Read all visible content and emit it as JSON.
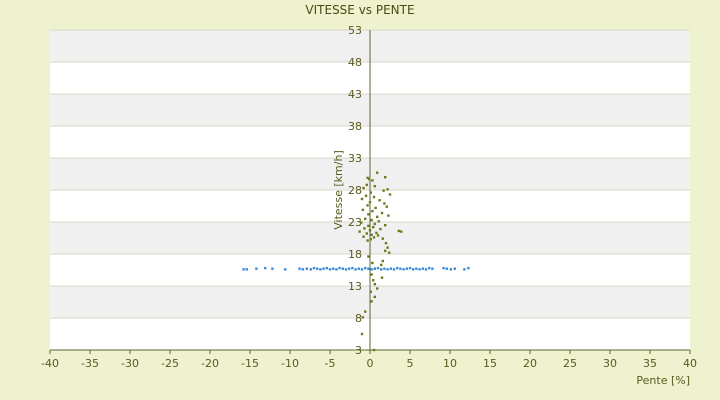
{
  "chart_data": {
    "type": "scatter",
    "title": "VITESSE vs PENTE",
    "xlabel": "Pente [%]",
    "ylabel": "Vitesse [km/h]",
    "xlim": [
      -40,
      40
    ],
    "ylim": [
      3,
      53
    ],
    "x_ticks": [
      "-40",
      "-35",
      "-30",
      "-25",
      "-20",
      "-15",
      "-10",
      "-5",
      "0",
      "5",
      "10",
      "15",
      "20",
      "25",
      "30",
      "35",
      "40"
    ],
    "y_ticks": [
      "3",
      "8",
      "13",
      "18",
      "23",
      "28",
      "33",
      "38",
      "43",
      "48",
      "53"
    ],
    "bottom_tick_label": "3",
    "grid": true,
    "legend": "none",
    "colors": {
      "background": "#eef2cf",
      "plot_band_a": "#ffffff",
      "plot_band_b": "#f0f0f0",
      "axis": "#556b2f",
      "series_speed": "#6b7a1f",
      "series_reference": "#3b8ad8"
    },
    "series": [
      {
        "color": "#6b7a1f",
        "points": [
          [
            0.9,
            30.7
          ],
          [
            1.9,
            30.0
          ],
          [
            -0.3,
            29.9
          ],
          [
            -0.1,
            29.7
          ],
          [
            0.3,
            29.5
          ],
          [
            -0.4,
            28.8
          ],
          [
            0.6,
            28.6
          ],
          [
            -0.8,
            28.3
          ],
          [
            2.2,
            28.1
          ],
          [
            1.7,
            27.9
          ],
          [
            0.1,
            27.6
          ],
          [
            2.5,
            27.3
          ],
          [
            -0.5,
            27.1
          ],
          [
            0.5,
            26.9
          ],
          [
            -1.0,
            26.6
          ],
          [
            1.2,
            26.4
          ],
          [
            0.0,
            26.1
          ],
          [
            1.8,
            25.9
          ],
          [
            -0.3,
            25.6
          ],
          [
            2.1,
            25.4
          ],
          [
            0.7,
            25.2
          ],
          [
            -0.9,
            24.9
          ],
          [
            0.3,
            24.7
          ],
          [
            1.5,
            24.4
          ],
          [
            -0.2,
            24.2
          ],
          [
            2.3,
            24.0
          ],
          [
            0.9,
            23.8
          ],
          [
            -0.6,
            23.5
          ],
          [
            0.2,
            23.3
          ],
          [
            1.1,
            23.1
          ],
          [
            -1.1,
            22.9
          ],
          [
            0.6,
            22.7
          ],
          [
            1.9,
            22.5
          ],
          [
            -0.2,
            22.4
          ],
          [
            0.4,
            22.2
          ],
          [
            -0.7,
            22.0
          ],
          [
            1.3,
            21.9
          ],
          [
            0.0,
            21.7
          ],
          [
            3.6,
            21.6
          ],
          [
            3.9,
            21.5
          ],
          [
            -1.3,
            21.5
          ],
          [
            0.8,
            21.3
          ],
          [
            -0.4,
            21.2
          ],
          [
            0.2,
            21.0
          ],
          [
            1.0,
            20.9
          ],
          [
            -0.8,
            20.7
          ],
          [
            0.5,
            20.6
          ],
          [
            1.6,
            20.4
          ],
          [
            0.1,
            20.3
          ],
          [
            -0.3,
            20.1
          ],
          [
            2.0,
            19.7
          ],
          [
            2.2,
            19.0
          ],
          [
            1.9,
            18.5
          ],
          [
            2.4,
            18.2
          ],
          [
            -0.2,
            17.6
          ],
          [
            1.6,
            16.9
          ],
          [
            0.3,
            16.6
          ],
          [
            1.4,
            16.3
          ],
          [
            0.6,
            15.7
          ],
          [
            0.2,
            14.8
          ],
          [
            1.5,
            14.3
          ],
          [
            0.4,
            13.9
          ],
          [
            0.6,
            13.3
          ],
          [
            0.9,
            12.6
          ],
          [
            0.1,
            12.1
          ],
          [
            0.6,
            11.3
          ],
          [
            0.2,
            10.6
          ],
          [
            -0.6,
            9.0
          ],
          [
            -0.9,
            8.1
          ],
          [
            -1.0,
            5.5
          ],
          [
            0.5,
            3.0
          ]
        ]
      },
      {
        "color": "#3b8ad8",
        "points": [
          [
            -15.8,
            15.6
          ],
          [
            -15.4,
            15.6
          ],
          [
            -14.2,
            15.7
          ],
          [
            -13.1,
            15.8
          ],
          [
            -12.2,
            15.7
          ],
          [
            -10.6,
            15.6
          ],
          [
            -8.8,
            15.7
          ],
          [
            -8.4,
            15.6
          ],
          [
            -7.9,
            15.7
          ],
          [
            -7.4,
            15.6
          ],
          [
            -7.0,
            15.8
          ],
          [
            -6.6,
            15.7
          ],
          [
            -6.2,
            15.6
          ],
          [
            -5.8,
            15.7
          ],
          [
            -5.4,
            15.8
          ],
          [
            -5.0,
            15.6
          ],
          [
            -4.6,
            15.7
          ],
          [
            -4.2,
            15.6
          ],
          [
            -3.8,
            15.8
          ],
          [
            -3.4,
            15.7
          ],
          [
            -3.0,
            15.6
          ],
          [
            -2.6,
            15.7
          ],
          [
            -2.2,
            15.8
          ],
          [
            -1.8,
            15.6
          ],
          [
            -1.4,
            15.7
          ],
          [
            -1.0,
            15.6
          ],
          [
            -0.6,
            15.8
          ],
          [
            -0.2,
            15.7
          ],
          [
            0.2,
            15.6
          ],
          [
            0.6,
            15.7
          ],
          [
            1.0,
            15.8
          ],
          [
            1.4,
            15.6
          ],
          [
            1.8,
            15.7
          ],
          [
            2.2,
            15.6
          ],
          [
            2.6,
            15.7
          ],
          [
            3.0,
            15.6
          ],
          [
            3.4,
            15.8
          ],
          [
            3.8,
            15.7
          ],
          [
            4.2,
            15.6
          ],
          [
            4.6,
            15.7
          ],
          [
            5.0,
            15.8
          ],
          [
            5.4,
            15.6
          ],
          [
            5.8,
            15.7
          ],
          [
            6.2,
            15.6
          ],
          [
            6.6,
            15.7
          ],
          [
            7.0,
            15.6
          ],
          [
            7.4,
            15.8
          ],
          [
            7.8,
            15.7
          ],
          [
            9.2,
            15.8
          ],
          [
            9.6,
            15.7
          ],
          [
            10.1,
            15.6
          ],
          [
            10.6,
            15.7
          ],
          [
            11.8,
            15.6
          ],
          [
            12.3,
            15.8
          ]
        ]
      }
    ]
  }
}
